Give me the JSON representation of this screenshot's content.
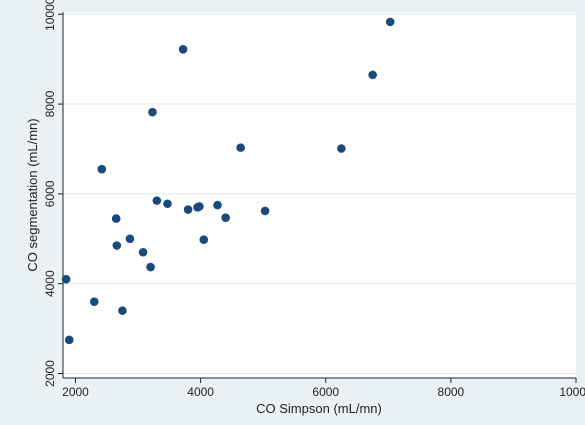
{
  "chart_data": {
    "type": "scatter",
    "title": "",
    "xlabel": "CO Simpson (mL/mn)",
    "ylabel": "CO segmentation (mL/mn)",
    "xlim": [
      1800,
      10000
    ],
    "ylim": [
      1900,
      10050
    ],
    "x_ticks": [
      "2000",
      "4000",
      "6000",
      "8000",
      "10000"
    ],
    "y_ticks": [
      "2000",
      "4000",
      "6000",
      "8000",
      "10000"
    ],
    "grid": "horizontal",
    "colors": {
      "point": "#1a4a7a",
      "plot_bg": "#ffffff",
      "page_bg": "#eaf1f4",
      "grid": "#dde6ea"
    },
    "series": [
      {
        "points": [
          {
            "x": 1850,
            "y": 4100
          },
          {
            "x": 1900,
            "y": 2750
          },
          {
            "x": 2300,
            "y": 3600
          },
          {
            "x": 2420,
            "y": 6550
          },
          {
            "x": 2650,
            "y": 5450
          },
          {
            "x": 2660,
            "y": 4850
          },
          {
            "x": 2750,
            "y": 3400
          },
          {
            "x": 2870,
            "y": 5000
          },
          {
            "x": 3080,
            "y": 4700
          },
          {
            "x": 3200,
            "y": 4370
          },
          {
            "x": 3230,
            "y": 7820
          },
          {
            "x": 3300,
            "y": 5850
          },
          {
            "x": 3470,
            "y": 5780
          },
          {
            "x": 3720,
            "y": 9220
          },
          {
            "x": 3800,
            "y": 5650
          },
          {
            "x": 3950,
            "y": 5700
          },
          {
            "x": 3980,
            "y": 5720
          },
          {
            "x": 4050,
            "y": 4980
          },
          {
            "x": 4270,
            "y": 5750
          },
          {
            "x": 4400,
            "y": 5470
          },
          {
            "x": 4640,
            "y": 7030
          },
          {
            "x": 5030,
            "y": 5620
          },
          {
            "x": 6250,
            "y": 7010
          },
          {
            "x": 6750,
            "y": 8650
          },
          {
            "x": 7030,
            "y": 9830
          }
        ]
      }
    ]
  }
}
